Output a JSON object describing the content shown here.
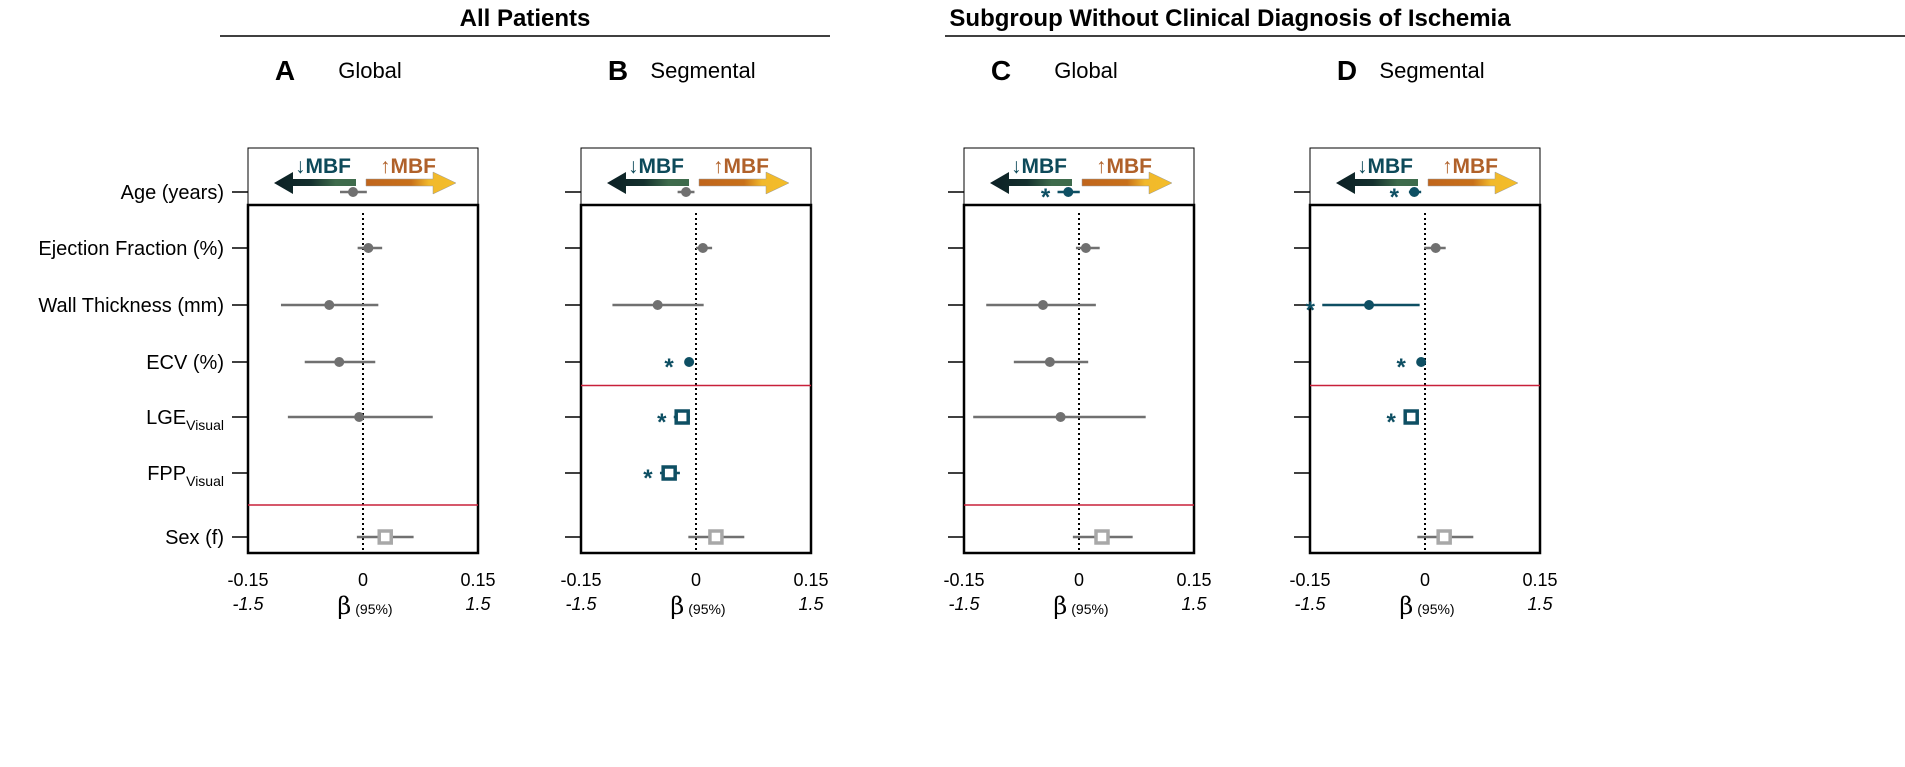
{
  "headers": [
    {
      "text": "All Patients"
    },
    {
      "text": "Subgroup Without Clinical Diagnosis of Ischemia"
    }
  ],
  "legend": {
    "down": "↓MBF",
    "up": "↑MBF"
  },
  "colors": {
    "significant": "#0e4f63",
    "nonsig": "#707070",
    "sex": "#a8a8a8",
    "divider": "#c8203a",
    "down_text": "#0d4a5a",
    "up_text": "#b0612a"
  },
  "chart_data": {
    "type": "forest",
    "rows": [
      {
        "label": "Age (years)"
      },
      {
        "label": "Ejection Fraction (%)"
      },
      {
        "label": "Wall Thickness (mm)"
      },
      {
        "label": "ECV (%)"
      },
      {
        "label": "LGE",
        "sub": "Visual"
      },
      {
        "label": "FPP",
        "sub": "Visual"
      },
      {
        "label": "Sex (f)"
      }
    ],
    "xlim": [
      -0.15,
      0.15
    ],
    "xticks": [
      "-0.15",
      "0",
      "0.15"
    ],
    "xticks_secondary": [
      "-1.5",
      "1.5"
    ],
    "xlabel": "β",
    "xlabel_sub": "(95%)",
    "panels": [
      {
        "letter": "A",
        "title": "Global",
        "divider_after_row": 5,
        "points": [
          {
            "row": 0,
            "est": -0.013,
            "lo": -0.03,
            "hi": 0.005,
            "sig": false
          },
          {
            "row": 1,
            "est": 0.007,
            "lo": -0.007,
            "hi": 0.025,
            "sig": false
          },
          {
            "row": 2,
            "est": -0.044,
            "lo": -0.107,
            "hi": 0.02,
            "sig": false
          },
          {
            "row": 3,
            "est": -0.031,
            "lo": -0.076,
            "hi": 0.016,
            "sig": false
          },
          {
            "row": 4,
            "est": -0.005,
            "lo": -0.098,
            "hi": 0.091,
            "sig": false
          },
          {
            "row": 6,
            "est": 0.029,
            "lo": -0.008,
            "hi": 0.066,
            "sig": false,
            "square": true
          }
        ]
      },
      {
        "letter": "B",
        "title": "Segmental",
        "divider_after_row": 3,
        "points": [
          {
            "row": 0,
            "est": -0.013,
            "lo": -0.024,
            "hi": -0.002,
            "sig": false
          },
          {
            "row": 1,
            "est": 0.009,
            "lo": 0.0,
            "hi": 0.021,
            "sig": false
          },
          {
            "row": 2,
            "est": -0.05,
            "lo": -0.109,
            "hi": 0.01,
            "sig": false
          },
          {
            "row": 3,
            "est": -0.009,
            "lo": -0.015,
            "hi": -0.003,
            "sig": true
          },
          {
            "row": 4,
            "est": -0.018,
            "lo": -0.029,
            "hi": -0.008,
            "sig": true,
            "square": true
          },
          {
            "row": 5,
            "est": -0.035,
            "lo": -0.047,
            "hi": -0.021,
            "sig": true,
            "square": true
          },
          {
            "row": 6,
            "est": 0.026,
            "lo": -0.01,
            "hi": 0.063,
            "sig": false,
            "square": true
          }
        ]
      },
      {
        "letter": "C",
        "title": "Global",
        "divider_after_row": 5,
        "points": [
          {
            "row": 0,
            "est": -0.014,
            "lo": -0.028,
            "hi": 0.001,
            "sig": true
          },
          {
            "row": 1,
            "est": 0.009,
            "lo": -0.004,
            "hi": 0.027,
            "sig": false
          },
          {
            "row": 2,
            "est": -0.047,
            "lo": -0.121,
            "hi": 0.022,
            "sig": false
          },
          {
            "row": 3,
            "est": -0.038,
            "lo": -0.085,
            "hi": 0.012,
            "sig": false
          },
          {
            "row": 4,
            "est": -0.024,
            "lo": -0.138,
            "hi": 0.087,
            "sig": false
          },
          {
            "row": 6,
            "est": 0.03,
            "lo": -0.008,
            "hi": 0.07,
            "sig": false,
            "square": true
          }
        ]
      },
      {
        "letter": "D",
        "title": "Segmental",
        "divider_after_row": 3,
        "points": [
          {
            "row": 0,
            "est": -0.014,
            "lo": -0.021,
            "hi": -0.005,
            "sig": true
          },
          {
            "row": 1,
            "est": 0.014,
            "lo": -0.001,
            "hi": 0.027,
            "sig": false
          },
          {
            "row": 2,
            "est": -0.073,
            "lo": -0.134,
            "hi": -0.007,
            "sig": true
          },
          {
            "row": 3,
            "est": -0.005,
            "lo": -0.009,
            "hi": -0.001,
            "sig": true
          },
          {
            "row": 4,
            "est": -0.018,
            "lo": -0.026,
            "hi": -0.009,
            "sig": true,
            "square": true
          },
          {
            "row": 6,
            "est": 0.025,
            "lo": -0.01,
            "hi": 0.063,
            "sig": false,
            "square": true
          }
        ]
      }
    ]
  }
}
